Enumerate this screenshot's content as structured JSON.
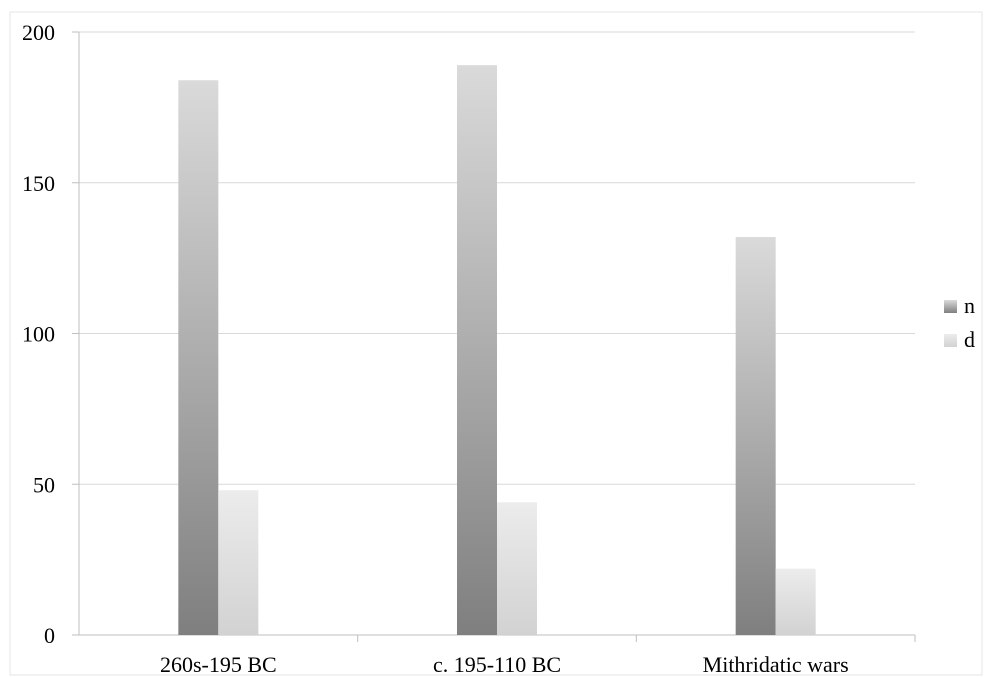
{
  "chart_data": {
    "type": "bar",
    "categories": [
      "260s-195 BC",
      "c. 195-110 BC",
      "Mithridatic wars"
    ],
    "series": [
      {
        "name": "n",
        "values": [
          184,
          189,
          132
        ]
      },
      {
        "name": "d",
        "values": [
          48,
          44,
          22
        ]
      }
    ],
    "ylim": [
      0,
      200
    ],
    "yticks": [
      0,
      50,
      100,
      150,
      200
    ],
    "grid": true,
    "legend_position": "right",
    "colors": {
      "n_top": "#dadada",
      "n_bottom": "#7f7f7f",
      "d_top": "#ececec",
      "d_bottom": "#d2d2d2",
      "grid": "#d9d9d9",
      "axis": "#bfbfbf"
    }
  }
}
